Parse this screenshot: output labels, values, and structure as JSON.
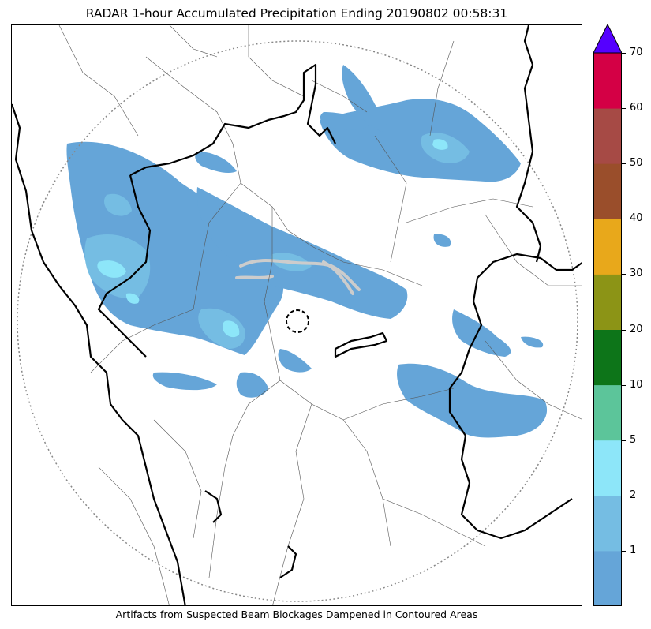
{
  "title": "RADAR 1-hour Accumulated Precipitation Ending 20190802 00:58:31",
  "caption": "Artifacts from Suspected Beam Blockages Dampened in Contoured Areas",
  "colorbar": {
    "levels": [
      {
        "label": "",
        "color": "#65a5d8"
      },
      {
        "label": "1",
        "color": "#75bde3"
      },
      {
        "label": "2",
        "color": "#8de6f9"
      },
      {
        "label": "5",
        "color": "#5cc59a"
      },
      {
        "label": "10",
        "color": "#0d7519"
      },
      {
        "label": "20",
        "color": "#8c9416"
      },
      {
        "label": "30",
        "color": "#e8a81b"
      },
      {
        "label": "40",
        "color": "#9a4e2b"
      },
      {
        "label": "50",
        "color": "#a64a45"
      },
      {
        "label": "60",
        "color": "#d40045"
      }
    ],
    "top_label": "70",
    "extend_color": "#5500ff"
  },
  "map": {
    "rain_colors": {
      "light": "#65a5d8",
      "medium": "#75bde3",
      "heavy": "#8de6f9"
    },
    "range_ring_color": "#888888",
    "artifact_color": "#cccccc"
  }
}
